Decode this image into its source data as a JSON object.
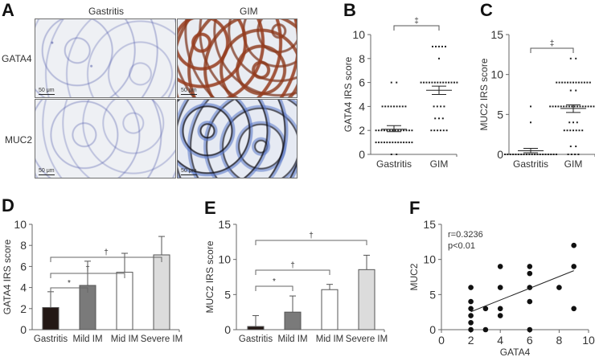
{
  "panels": {
    "A": {
      "letter": "A",
      "col_headers": [
        "Gastritis",
        "GIM"
      ],
      "row_labels": [
        "GATA4",
        "MUC2"
      ],
      "scale_bar": "50 μm",
      "images": [
        {
          "row": "GATA4",
          "col": "Gastritis",
          "stain": "blue hematoxylin, negative"
        },
        {
          "row": "GATA4",
          "col": "GIM",
          "stain": "brown positive glands"
        },
        {
          "row": "MUC2",
          "col": "Gastritis",
          "stain": "blue hematoxylin, negative"
        },
        {
          "row": "MUC2",
          "col": "GIM",
          "stain": "dark goblet cell staining"
        }
      ]
    },
    "B": {
      "letter": "B"
    },
    "C": {
      "letter": "C"
    },
    "D": {
      "letter": "D"
    },
    "E": {
      "letter": "E"
    },
    "F": {
      "letter": "F"
    }
  },
  "chart_data": [
    {
      "panel": "B",
      "type": "scatter",
      "title": "",
      "xlabel": "",
      "ylabel": "GATA4 IRS score",
      "categories": [
        "Gastritis",
        "GIM"
      ],
      "ylim": [
        0,
        10
      ],
      "yticks": [
        0,
        2,
        4,
        6,
        8,
        10
      ],
      "significance": [
        {
          "from": "Gastritis",
          "to": "GIM",
          "mark": "‡"
        }
      ],
      "series": [
        {
          "name": "Gastritis",
          "points": {
            "0": 2,
            "1": 14,
            "2": 14,
            "4": 9,
            "6": 2
          },
          "mean": 2.1,
          "sem_low": 1.9,
          "sem_high": 2.4
        },
        {
          "name": "GIM",
          "points": {
            "2": 6,
            "3": 3,
            "4": 4,
            "6": 14,
            "8": 1,
            "9": 5
          },
          "mean": 5.35,
          "sem_low": 5.0,
          "sem_high": 5.7
        }
      ]
    },
    {
      "panel": "C",
      "type": "scatter",
      "title": "",
      "xlabel": "",
      "ylabel": "MUC2 IRS score",
      "categories": [
        "Gastritis",
        "GIM"
      ],
      "ylim": [
        0,
        15
      ],
      "yticks": [
        0,
        5,
        10,
        15
      ],
      "significance": [
        {
          "from": "Gastritis",
          "to": "GIM",
          "mark": "‡"
        }
      ],
      "series": [
        {
          "name": "Gastritis",
          "points": {
            "0": 20,
            "4": 1,
            "6": 1
          },
          "mean": 0.45,
          "sem_low": 0.2,
          "sem_high": 0.75
        },
        {
          "name": "GIM",
          "points": {
            "0": 4,
            "1": 2,
            "3": 7,
            "4": 3,
            "6": 18,
            "8": 2,
            "9": 13,
            "12": 2
          },
          "mean": 5.75,
          "sem_low": 5.25,
          "sem_high": 6.2
        }
      ]
    },
    {
      "panel": "D",
      "type": "bar",
      "title": "",
      "xlabel": "",
      "ylabel": "GATA4 IRS score",
      "categories": [
        "Gastritis",
        "Mild IM",
        "Mid IM",
        "Severe IM"
      ],
      "values": [
        2.1,
        4.2,
        5.45,
        7.1
      ],
      "errors": [
        1.5,
        2.3,
        1.8,
        1.75
      ],
      "colors": [
        "#231815",
        "#7a7a7a",
        "#ffffff",
        "#dcdcdc"
      ],
      "ylim": [
        0,
        10
      ],
      "yticks": [
        0,
        2,
        4,
        6,
        8,
        10
      ],
      "significance": [
        {
          "from": "Gastritis",
          "to": "Mild IM",
          "mark": "*"
        },
        {
          "from": "Gastritis",
          "to": "Mid IM",
          "mark": "†"
        },
        {
          "from": "Gastritis",
          "to": "Severe IM",
          "mark": "†"
        }
      ]
    },
    {
      "panel": "E",
      "type": "bar",
      "title": "",
      "xlabel": "",
      "ylabel": "MUC2 IRS score",
      "categories": [
        "Gastritis",
        "Mild IM",
        "Mid IM",
        "Severe IM"
      ],
      "values": [
        0.45,
        2.5,
        5.7,
        8.55
      ],
      "errors": [
        1.55,
        2.3,
        0.75,
        2.05
      ],
      "colors": [
        "#231815",
        "#7a7a7a",
        "#ffffff",
        "#dcdcdc"
      ],
      "ylim": [
        0,
        15
      ],
      "yticks": [
        0,
        5,
        10,
        15
      ],
      "significance": [
        {
          "from": "Gastritis",
          "to": "Mild IM",
          "mark": "*"
        },
        {
          "from": "Gastritis",
          "to": "Mid IM",
          "mark": "†"
        },
        {
          "from": "Gastritis",
          "to": "Severe IM",
          "mark": "†"
        }
      ]
    },
    {
      "panel": "F",
      "type": "scatter",
      "title": "",
      "xlabel": "GATA4",
      "ylabel": "MUC2",
      "xlim": [
        0,
        10
      ],
      "ylim": [
        0,
        15
      ],
      "xticks": [
        0,
        2,
        4,
        6,
        8,
        10
      ],
      "yticks": [
        0,
        5,
        10,
        15
      ],
      "annotations": [
        "r=0.3236",
        "p<0.01"
      ],
      "x": [
        2,
        2,
        2,
        2,
        2,
        2,
        3,
        3,
        4,
        4,
        4,
        4,
        6,
        6,
        6,
        6,
        6,
        8,
        9,
        9,
        9
      ],
      "y": [
        0,
        1,
        2,
        3,
        4,
        6,
        0,
        3,
        2,
        3,
        6,
        9,
        0,
        4,
        6,
        8,
        9,
        6,
        3,
        9,
        12
      ],
      "fit_line": {
        "x": [
          2,
          9
        ],
        "y": [
          2.55,
          8.4
        ]
      }
    }
  ]
}
